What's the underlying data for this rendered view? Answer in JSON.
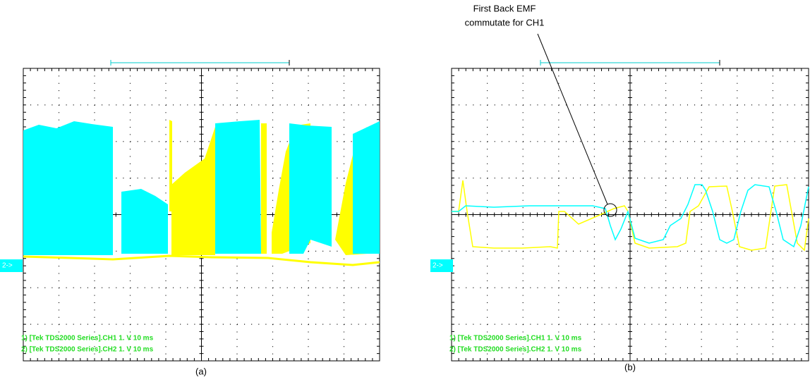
{
  "annotation": {
    "lines": [
      "First Back EMF",
      "commutate for CH1"
    ]
  },
  "panels": [
    {
      "caption": "(a)",
      "marker": "2->",
      "labels": [
        "1) [Tek TDS2000 Series].CH1  1. V   10 ms",
        "2) [Tek TDS2000 Series].CH2  1. V   10 ms"
      ]
    },
    {
      "caption": "(b)",
      "marker": "2->",
      "labels": [
        "1) [Tek TDS2000 Series].CH1  1. V   10 ms",
        "2) [Tek TDS2000 Series].CH2  1. V   10 ms"
      ]
    }
  ]
}
